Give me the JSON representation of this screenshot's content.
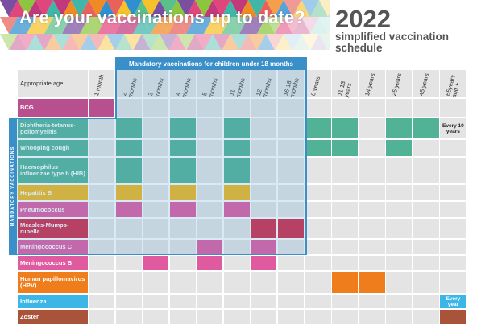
{
  "header": {
    "title": "Are your vaccinations up to date?",
    "year": "2022",
    "subtitle": "simplified vaccination schedule"
  },
  "banner": "Mandatory vaccinations for children under 18 months",
  "side_label": "MANDATORY VACCINATIONS",
  "table": {
    "corner": "Appropriate age",
    "columns": [
      "1 month",
      "2 months",
      "3 months",
      "4 months",
      "5 months",
      "11 months",
      "12 months",
      "16-18 months",
      "6 years",
      "11-13 years",
      "14 years",
      "25 years",
      "45 years",
      "65years and +"
    ],
    "rows": [
      {
        "name": "BCG"
      },
      {
        "name": "Diphtheria-tetanus-poliomyelitis",
        "note": "Every 10 years"
      },
      {
        "name": "Whooping cough"
      },
      {
        "name": "Haemophilus influenzae type b (HIB)"
      },
      {
        "name": "Hepatitis B"
      },
      {
        "name": "Pneumococcus"
      },
      {
        "name": "Measles-Mumps-rubella"
      },
      {
        "name": "Meningococcus C"
      },
      {
        "name": "Meningococcus B"
      },
      {
        "name": "Human papillomavirus (HPV)"
      },
      {
        "name": "Influenza",
        "note": "Every year"
      },
      {
        "name": "Zoster"
      }
    ]
  }
}
